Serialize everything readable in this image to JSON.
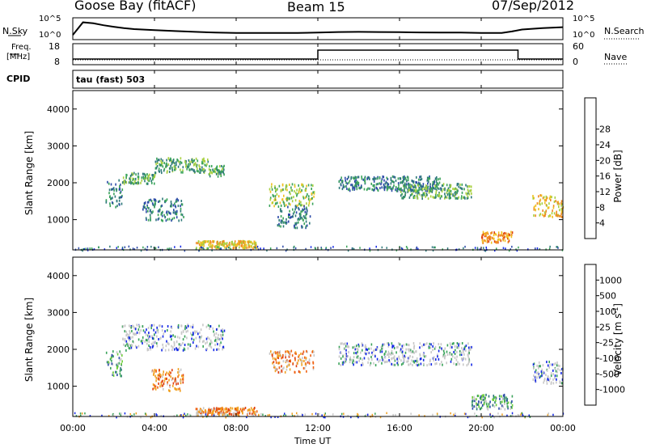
{
  "header": {
    "station": "Goose Bay (fitACF)",
    "beam": "Beam 15",
    "date": "07/Sep/2012"
  },
  "noise_panel": {
    "left_label": "N.Sky",
    "left_ticks": [
      "10^5",
      "10^0"
    ],
    "right_ticks": [
      "10^5",
      "10^0"
    ],
    "right_label": "N.Search"
  },
  "freq_panel": {
    "left_label_line1": "Freq.",
    "left_label_line2": "[MHz]",
    "left_ticks": [
      "18",
      "8"
    ],
    "right_ticks": [
      "60",
      "0"
    ],
    "right_label": "Nave"
  },
  "cpid_panel": {
    "label": "CPID",
    "program": "tau (fast) 503"
  },
  "time_axis": {
    "label": "Time UT",
    "ticks": [
      "00:00",
      "04:00",
      "08:00",
      "12:00",
      "16:00",
      "20:00",
      "00:00"
    ]
  },
  "range_axis": {
    "label": "Slant Range [km]",
    "ticks": [
      "1000",
      "2000",
      "3000",
      "4000"
    ]
  },
  "power_colorbar": {
    "label": "Power [dB]",
    "ticks": [
      "4",
      "8",
      "12",
      "16",
      "20",
      "24",
      "28"
    ],
    "colors": [
      "#1428e6",
      "#2c4aa8",
      "#2f7a7a",
      "#3aa35a",
      "#a8d040",
      "#f0c020",
      "#f08a20",
      "#e04010",
      "#e01010"
    ]
  },
  "velocity_colorbar": {
    "label": "Velocity [m s",
    "label_sup": "-1",
    "label_end": "]",
    "ticks": [
      "1000",
      "500",
      "100",
      "25",
      "-25",
      "-100",
      "-500",
      "-1000"
    ],
    "colors": [
      "#1428e6",
      "#2c4aa8",
      "#2f7a7a",
      "#3aa35a",
      "#c8c8c8",
      "#c8c8c8",
      "#f0a020",
      "#f06010",
      "#e01010"
    ]
  },
  "chart_data": {
    "type": "heatmap",
    "title": "Goose Bay (fitACF)",
    "xlabel": "Time UT",
    "ylabel": "Slant Range [km]",
    "xlim_hours": [
      0,
      24
    ],
    "ylim_km": [
      180,
      4500
    ],
    "noise_series": {
      "x_hours": [
        0,
        0.5,
        1,
        1.5,
        2,
        2.5,
        3,
        4,
        5,
        6,
        7,
        8,
        9,
        10,
        11,
        12,
        13,
        14,
        15,
        16,
        17,
        18,
        19,
        20,
        21,
        21.5,
        22,
        23,
        24
      ],
      "y_frac": [
        0.2,
        0.85,
        0.8,
        0.7,
        0.62,
        0.55,
        0.5,
        0.45,
        0.4,
        0.36,
        0.32,
        0.3,
        0.3,
        0.3,
        0.3,
        0.32,
        0.35,
        0.36,
        0.35,
        0.34,
        0.33,
        0.32,
        0.32,
        0.3,
        0.3,
        0.38,
        0.48,
        0.55,
        0.6
      ]
    },
    "frequency_mhz": {
      "segments": [
        {
          "start_hour": 0,
          "end_hour": 12.0,
          "value": 10
        },
        {
          "start_hour": 12.0,
          "end_hour": 21.8,
          "value": 15.5
        },
        {
          "start_hour": 21.8,
          "end_hour": 24,
          "value": 10
        }
      ]
    },
    "power_clusters_km": [
      {
        "t0": 1.6,
        "t1": 2.4,
        "r0": 1300,
        "r1": 2100,
        "level": 2
      },
      {
        "t0": 2.4,
        "t1": 4.0,
        "r0": 2000,
        "r1": 2300,
        "level": 3
      },
      {
        "t0": 4.0,
        "t1": 6.6,
        "r0": 2300,
        "r1": 2700,
        "level": 3
      },
      {
        "t0": 6.6,
        "t1": 7.4,
        "r0": 2200,
        "r1": 2500,
        "level": 3
      },
      {
        "t0": 3.4,
        "t1": 5.4,
        "r0": 1000,
        "r1": 1600,
        "level": 2
      },
      {
        "t0": 9.6,
        "t1": 11.8,
        "r0": 1400,
        "r1": 2000,
        "level": 4
      },
      {
        "t0": 10.0,
        "t1": 11.6,
        "r0": 800,
        "r1": 1400,
        "level": 2
      },
      {
        "t0": 6.0,
        "t1": 9.0,
        "r0": 250,
        "r1": 450,
        "level": 5
      },
      {
        "t0": 13.0,
        "t1": 18.0,
        "r0": 1800,
        "r1": 2200,
        "level": 2
      },
      {
        "t0": 16.0,
        "t1": 19.5,
        "r0": 1600,
        "r1": 2000,
        "level": 3
      },
      {
        "t0": 20.0,
        "t1": 21.5,
        "r0": 400,
        "r1": 700,
        "level": 6
      },
      {
        "t0": 22.5,
        "t1": 24.0,
        "r0": 1100,
        "r1": 1700,
        "level": 5
      }
    ],
    "velocity_clusters_km": [
      {
        "t0": 2.4,
        "t1": 7.4,
        "r0": 2000,
        "r1": 2700,
        "class": "low"
      },
      {
        "t0": 1.6,
        "t1": 2.4,
        "r0": 1300,
        "r1": 2000,
        "class": "pos"
      },
      {
        "t0": 3.8,
        "t1": 5.4,
        "r0": 900,
        "r1": 1500,
        "class": "neg"
      },
      {
        "t0": 6.0,
        "t1": 9.0,
        "r0": 250,
        "r1": 450,
        "class": "neg"
      },
      {
        "t0": 9.6,
        "t1": 11.8,
        "r0": 1400,
        "r1": 2000,
        "class": "neg"
      },
      {
        "t0": 13.0,
        "t1": 19.5,
        "r0": 1600,
        "r1": 2200,
        "class": "low"
      },
      {
        "t0": 19.5,
        "t1": 21.5,
        "r0": 400,
        "r1": 800,
        "class": "pos"
      },
      {
        "t0": 22.5,
        "t1": 24.0,
        "r0": 1100,
        "r1": 1700,
        "class": "low"
      }
    ]
  }
}
